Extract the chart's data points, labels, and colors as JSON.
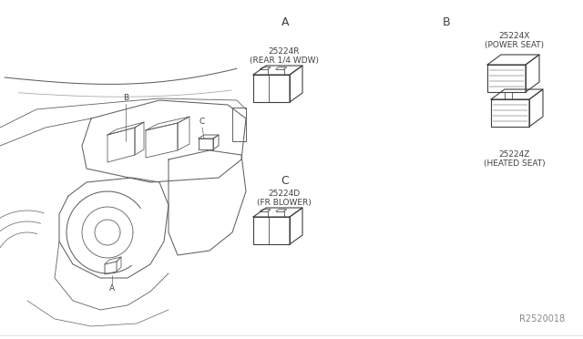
{
  "bg_color": "#ffffff",
  "line_color": "#404040",
  "text_color": "#404040",
  "ref_number": "R2520018",
  "section_A_label": "A",
  "section_B_label": "B",
  "section_C_label": "C",
  "part_A_num": "25224R",
  "part_A_desc": "(REAR 1/4 WDW)",
  "part_B_top_num": "25224X",
  "part_B_top_desc": "(POWER SEAT)",
  "part_B_bot_num": "25224Z",
  "part_B_bot_desc": "(HEATED SEAT)",
  "part_C_num": "25224D",
  "part_C_desc": "(FR BLOWER)"
}
